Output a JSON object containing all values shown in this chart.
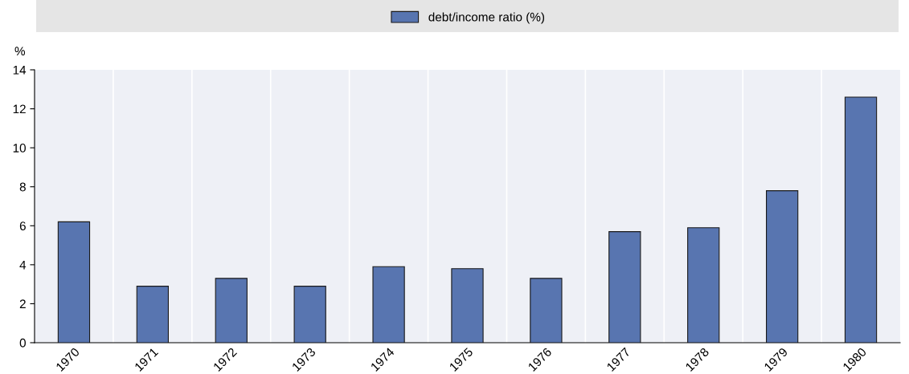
{
  "chart_data": {
    "type": "bar",
    "ylabel": "%",
    "categories": [
      "1970",
      "1971",
      "1972",
      "1973",
      "1974",
      "1975",
      "1976",
      "1977",
      "1978",
      "1979",
      "1980"
    ],
    "series": [
      {
        "name": "debt/income ratio (%)",
        "color": "#5875b0",
        "values": [
          6.2,
          2.9,
          3.3,
          2.9,
          3.9,
          3.8,
          3.3,
          5.7,
          5.9,
          7.8,
          12.6
        ]
      }
    ],
    "ylim": [
      0,
      14
    ],
    "yticks": [
      0,
      2,
      4,
      6,
      8,
      10,
      12,
      14
    ],
    "grid": "x",
    "legend": "top"
  }
}
